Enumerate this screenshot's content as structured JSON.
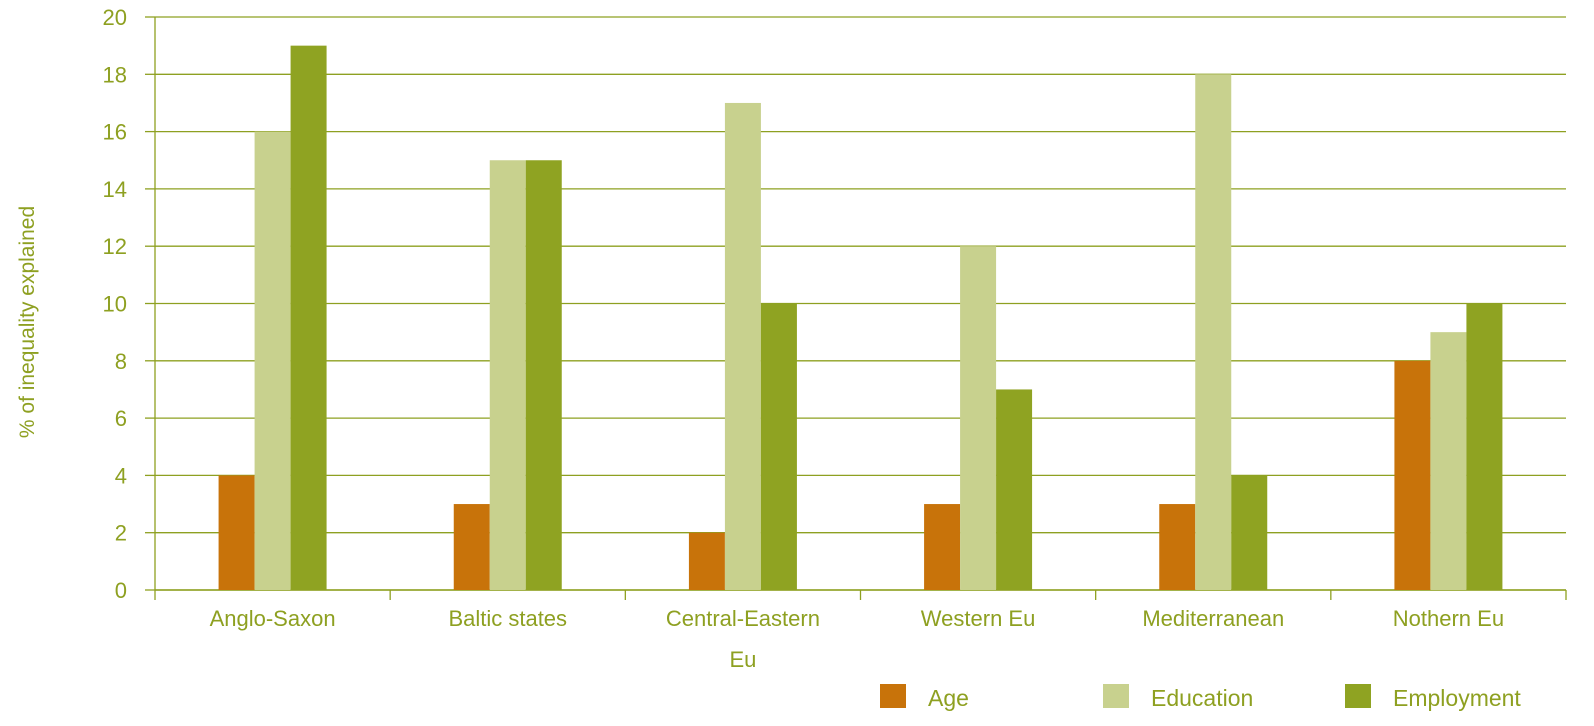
{
  "chart_data": {
    "type": "bar",
    "ylabel": "% of inequality explained",
    "xlabel": "",
    "ylim": [
      0,
      20
    ],
    "yticks": [
      0,
      2,
      4,
      6,
      8,
      10,
      12,
      14,
      16,
      18,
      20
    ],
    "grid": true,
    "legend_position": "bottom-right",
    "categories": [
      [
        "Anglo-Saxon"
      ],
      [
        "Baltic states"
      ],
      [
        "Central-Eastern",
        "Eu"
      ],
      [
        "Western Eu"
      ],
      [
        "Mediterranean"
      ],
      [
        "Nothern Eu"
      ]
    ],
    "series": [
      {
        "name": "Age",
        "color": "#c8730a",
        "values": [
          4,
          3,
          2,
          3,
          3,
          8
        ]
      },
      {
        "name": "Education",
        "color": "#c8d18e",
        "values": [
          16,
          15,
          17,
          12,
          18,
          9
        ]
      },
      {
        "name": "Employment",
        "color": "#8fa322",
        "values": [
          19,
          15,
          10,
          7,
          4,
          10
        ]
      }
    ],
    "colors": {
      "grid": "#8ea021",
      "axis": "#8ea021",
      "text": "#8ea021"
    }
  }
}
